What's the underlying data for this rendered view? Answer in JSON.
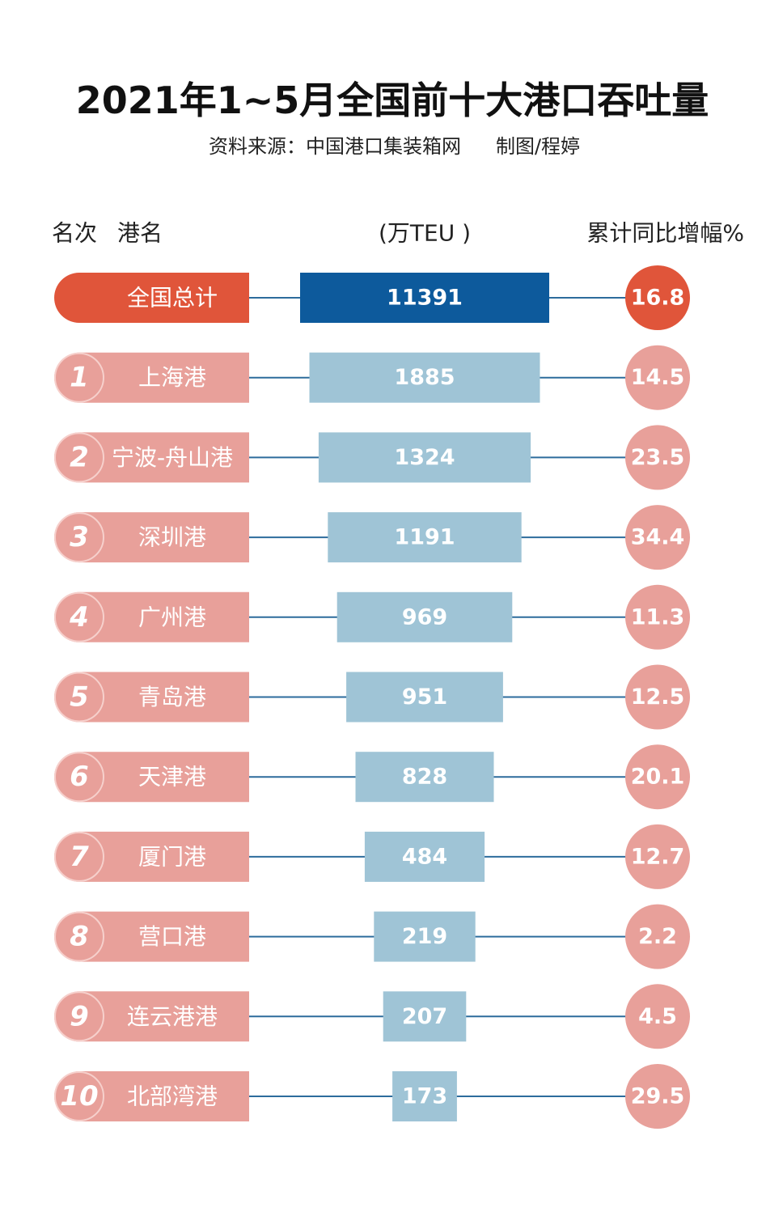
{
  "header": {
    "title": "2021年1~5月全国前十大港口吞吐量",
    "source": "资料来源：中国港口集装箱网",
    "credit": "制图/程婷"
  },
  "columns": {
    "rank": "名次",
    "port": "港名",
    "volume": "(万TEU )",
    "growth": "累计同比增幅%"
  },
  "total": {
    "label": "全国总计",
    "volume": 11391,
    "growth": 16.8
  },
  "rows": [
    [
      1,
      "上海港",
      1885,
      14.5
    ],
    [
      2,
      "宁波-舟山港",
      1324,
      23.5
    ],
    [
      3,
      "深圳港",
      1191,
      34.4
    ],
    [
      4,
      "广州港",
      969,
      11.3
    ],
    [
      5,
      "青岛港",
      951,
      12.5
    ],
    [
      6,
      "天津港",
      828,
      20.1
    ],
    [
      7,
      "厦门港",
      484,
      12.7
    ],
    [
      8,
      "营口港",
      219,
      2.2
    ],
    [
      9,
      "连云港港",
      207,
      4.5
    ],
    [
      10,
      "北部湾港",
      173,
      29.5
    ]
  ]
}
